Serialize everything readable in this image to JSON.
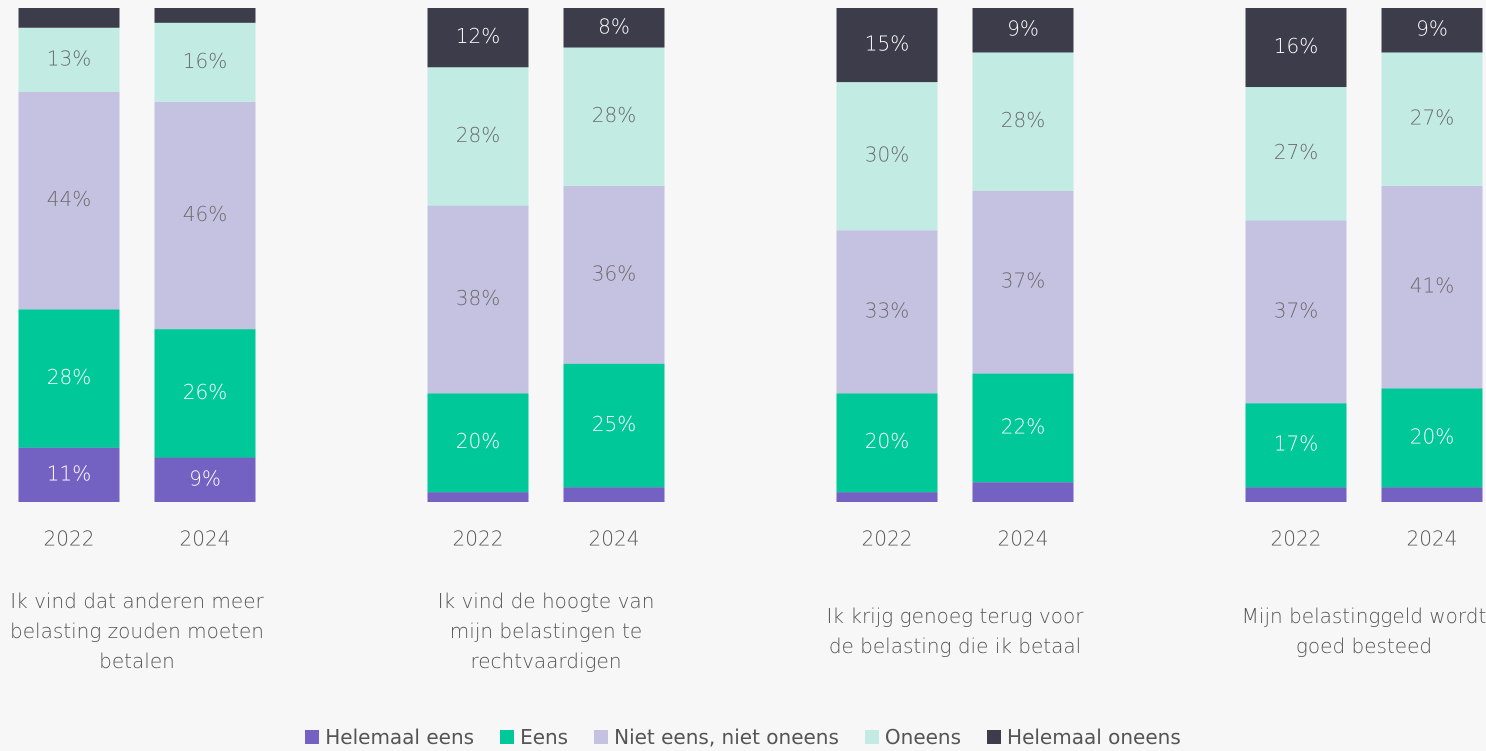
{
  "chart_data": {
    "type": "bar",
    "stacked": true,
    "categories": [
      "2022",
      "2024",
      "2022",
      "2024",
      "2022",
      "2024",
      "2022",
      "2024"
    ],
    "group_labels": [
      "Ik vind dat anderen meer belasting zouden moeten betalen",
      "Ik vind de hoogte van mijn belastingen te rechtvaardigen",
      "Ik krijg genoeg terug voor de belasting die ik betaal",
      "Mijn belastinggeld wordt goed besteed"
    ],
    "ylim": [
      0,
      100
    ],
    "series": [
      {
        "name": "Helemaal eens",
        "color": "#7462c2",
        "values": [
          11,
          9,
          2,
          3,
          2,
          4,
          3,
          3
        ],
        "value_labels": [
          "11%",
          "9%",
          null,
          null,
          null,
          null,
          null,
          null
        ]
      },
      {
        "name": "Eens",
        "color": "#00c898",
        "values": [
          28,
          26,
          20,
          25,
          20,
          22,
          17,
          20
        ],
        "value_labels": [
          "28%",
          "26%",
          "20%",
          "25%",
          "20%",
          "22%",
          "17%",
          "20%"
        ]
      },
      {
        "name": "Niet eens, niet oneens",
        "color": "#c5c1e0",
        "values": [
          44,
          46,
          38,
          36,
          33,
          37,
          37,
          41
        ],
        "value_labels": [
          "44%",
          "46%",
          "38%",
          "36%",
          "33%",
          "37%",
          "37%",
          "41%"
        ]
      },
      {
        "name": "Oneens",
        "color": "#c1ebe3",
        "values": [
          13,
          16,
          28,
          28,
          30,
          28,
          27,
          27
        ],
        "value_labels": [
          "13%",
          "16%",
          "28%",
          "28%",
          "30%",
          "28%",
          "27%",
          "27%"
        ]
      },
      {
        "name": "Helemaal oneens",
        "color": "#3d3c4b",
        "values": [
          4,
          3,
          12,
          8,
          15,
          9,
          16,
          9
        ],
        "value_labels": [
          null,
          null,
          "12%",
          "8%",
          "15%",
          "9%",
          "16%",
          "9%"
        ]
      }
    ]
  }
}
